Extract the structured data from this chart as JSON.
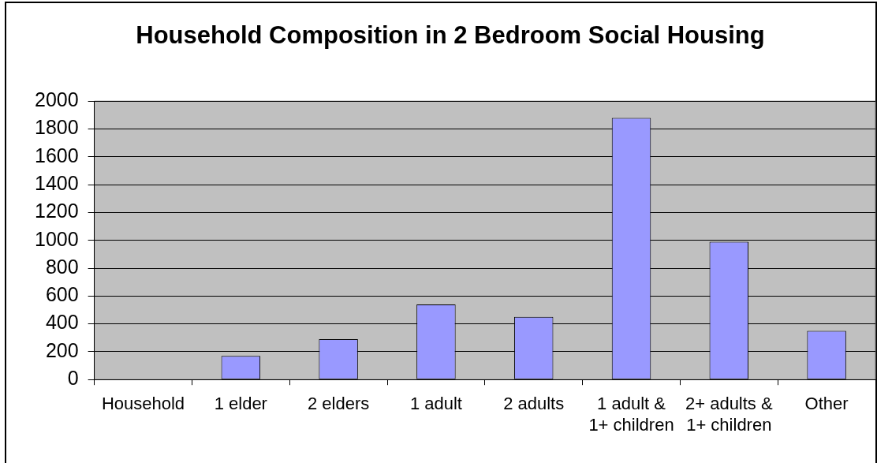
{
  "chart_data": {
    "type": "bar",
    "title": "Household Composition in 2 Bedroom Social Housing",
    "categories": [
      "Household",
      "1 elder",
      "2 elders",
      "1 adult",
      "2 adults",
      "1 adult & 1+ children",
      "2+ adults & 1+ children",
      "Other"
    ],
    "values": [
      null,
      170,
      290,
      540,
      450,
      1880,
      990,
      350
    ],
    "color": "#9999ff",
    "ylim": [
      0,
      2000
    ],
    "yticks": [
      0,
      200,
      400,
      600,
      800,
      1000,
      1200,
      1400,
      1600,
      1800,
      2000
    ],
    "grid": "y"
  }
}
